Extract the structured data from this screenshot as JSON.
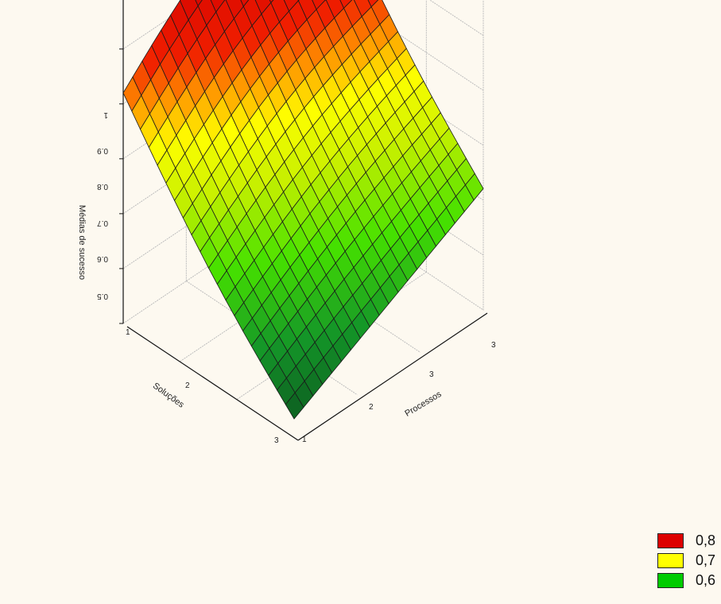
{
  "chart_data": {
    "type": "surface3d",
    "title": "",
    "z_axis": {
      "label": "Médias de sucesso",
      "range": [
        0.4,
        1.0
      ],
      "ticks": [
        "0.5",
        "0.6",
        "0.7",
        "0.8",
        "0.9",
        "1"
      ]
    },
    "x_axis": {
      "label": "Soluções",
      "ticks": [
        "1",
        "2",
        "3"
      ]
    },
    "y_axis": {
      "label": "Processos",
      "ticks": [
        "1",
        "2",
        "3"
      ]
    },
    "surface_corners": {
      "left_corner": 0.78,
      "top_corner": 0.97,
      "right_corner": 0.6,
      "front_corner": 0.43
    },
    "legend": [
      {
        "label": "0,8",
        "color": "#dd0000"
      },
      {
        "label": "0,7",
        "color": "#ffff00"
      },
      {
        "label": "0,6",
        "color": "#00cc00"
      }
    ],
    "colors": {
      "background": "#fdf9f0",
      "grid": "#bdbdbd"
    }
  }
}
